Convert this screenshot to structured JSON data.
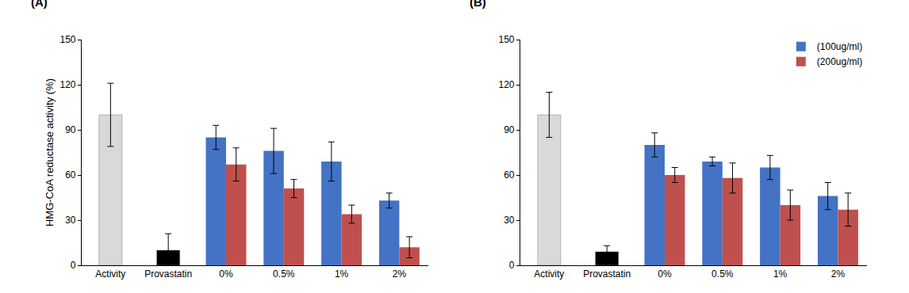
{
  "chart_data": [
    {
      "type": "bar",
      "title": "(A)",
      "y_label": "HMG-CoA reductase activity (%)",
      "categories": [
        "Activity",
        "Provastatin",
        "0%",
        "0.5%",
        "1%",
        "2%"
      ],
      "series": [
        {
          "colors": [
            "#d9d9d9",
            "#000000",
            null,
            null,
            null,
            null
          ],
          "values": [
            100,
            10,
            null,
            null,
            null,
            null
          ],
          "errors": [
            21,
            11,
            null,
            null,
            null,
            null
          ]
        },
        {
          "name": "(100ug/ml)",
          "color": "#4472c4",
          "values": [
            null,
            null,
            85,
            76,
            69,
            43
          ],
          "errors": [
            null,
            null,
            8,
            15,
            13,
            5
          ]
        },
        {
          "name": "(200ug/ml)",
          "color": "#c0504d",
          "values": [
            null,
            null,
            67,
            51,
            34,
            12
          ],
          "errors": [
            null,
            null,
            11,
            6,
            6,
            7
          ]
        }
      ],
      "ylim": [
        0,
        150
      ],
      "yticks": [
        0,
        30,
        60,
        90,
        120,
        150
      ],
      "grid": false
    },
    {
      "type": "bar",
      "title": "(B)",
      "categories": [
        "Activity",
        "Provastatin",
        "0%",
        "0.5%",
        "1%",
        "2%"
      ],
      "series": [
        {
          "colors": [
            "#d9d9d9",
            "#000000",
            null,
            null,
            null,
            null
          ],
          "values": [
            100,
            9,
            null,
            null,
            null,
            null
          ],
          "errors": [
            15,
            4,
            null,
            null,
            null,
            null
          ]
        },
        {
          "name": "(100ug/ml)",
          "color": "#4472c4",
          "values": [
            null,
            null,
            80,
            69,
            65,
            46
          ],
          "errors": [
            null,
            null,
            8,
            3,
            8,
            9
          ]
        },
        {
          "name": "(200ug/ml)",
          "color": "#c0504d",
          "values": [
            null,
            null,
            60,
            58,
            40,
            37
          ],
          "errors": [
            null,
            null,
            5,
            10,
            10,
            11
          ]
        }
      ],
      "ylim": [
        0,
        150
      ],
      "yticks": [
        0,
        30,
        60,
        90,
        120,
        150
      ],
      "grid": false,
      "legend": "upper right"
    }
  ]
}
